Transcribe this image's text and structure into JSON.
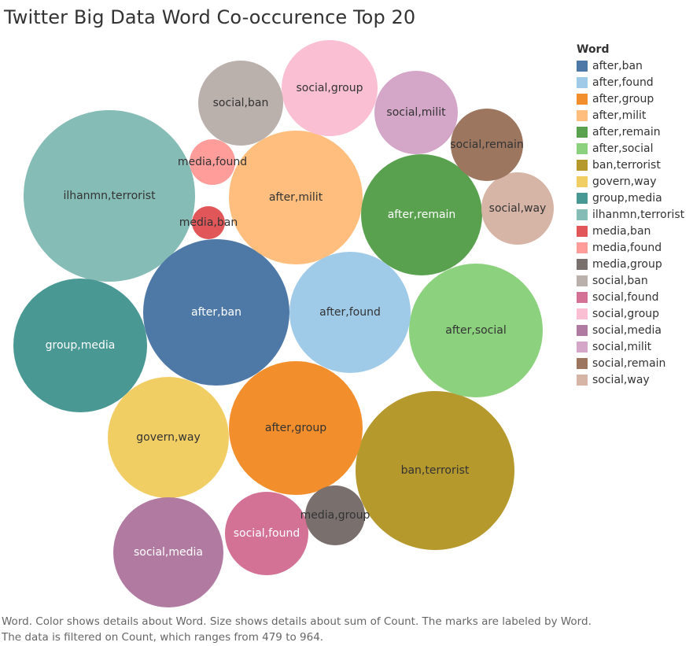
{
  "title": "Twitter Big Data Word Co-occurence Top 20",
  "caption": "Word.  Color shows details about Word.  Size shows details about sum of Count.  The marks are labeled by Word. The data is filtered on Count, which ranges from 479 to 964.",
  "legend": {
    "title": "Word",
    "placement": "right",
    "items": [
      {
        "label": "after,ban",
        "color": "#4e79a7"
      },
      {
        "label": "after,found",
        "color": "#a0cbe8"
      },
      {
        "label": "after,group",
        "color": "#f28e2b"
      },
      {
        "label": "after,milit",
        "color": "#ffbe7d"
      },
      {
        "label": "after,remain",
        "color": "#59a14f"
      },
      {
        "label": "after,social",
        "color": "#8cd17d"
      },
      {
        "label": "ban,terrorist",
        "color": "#b6992d"
      },
      {
        "label": "govern,way",
        "color": "#f1ce63"
      },
      {
        "label": "group,media",
        "color": "#499894"
      },
      {
        "label": "ilhanmn,terrorist",
        "color": "#86bcb6"
      },
      {
        "label": "media,ban",
        "color": "#e15759"
      },
      {
        "label": "media,found",
        "color": "#ff9d9a"
      },
      {
        "label": "media,group",
        "color": "#79706e"
      },
      {
        "label": "social,ban",
        "color": "#bab0ac"
      },
      {
        "label": "social,found",
        "color": "#d37295"
      },
      {
        "label": "social,group",
        "color": "#fabfd2"
      },
      {
        "label": "social,media",
        "color": "#b07aa1"
      },
      {
        "label": "social,milit",
        "color": "#d4a6c8"
      },
      {
        "label": "social,remain",
        "color": "#9d7660"
      },
      {
        "label": "social,way",
        "color": "#d7b5a6"
      }
    ]
  },
  "chart_data": {
    "type": "bubble",
    "title": "Twitter Big Data Word Co-occurence Top 20",
    "size_measure": "sum of Count",
    "count_range": [
      479,
      964
    ],
    "series": [
      {
        "word": "ilhanmn,terrorist",
        "count": 964,
        "color": "#86bcb6",
        "label_color": "#333333"
      },
      {
        "word": "ban,terrorist",
        "count": 900,
        "color": "#b6992d",
        "label_color": "#333333"
      },
      {
        "word": "after,ban",
        "count": 865,
        "color": "#4e79a7",
        "label_color": "#ffffff"
      },
      {
        "word": "after,milit",
        "count": 800,
        "color": "#ffbe7d",
        "label_color": "#333333"
      },
      {
        "word": "after,social",
        "count": 775,
        "color": "#8cd17d",
        "label_color": "#333333"
      },
      {
        "word": "group,media",
        "count": 765,
        "color": "#499894",
        "label_color": "#ffffff"
      },
      {
        "word": "after,group",
        "count": 760,
        "color": "#f28e2b",
        "label_color": "#333333"
      },
      {
        "word": "after,remain",
        "count": 710,
        "color": "#59a14f",
        "label_color": "#ffffff"
      },
      {
        "word": "after,found",
        "count": 705,
        "color": "#a0cbe8",
        "label_color": "#333333"
      },
      {
        "word": "govern,way",
        "count": 695,
        "color": "#f1ce63",
        "label_color": "#333333"
      },
      {
        "word": "social,media",
        "count": 680,
        "color": "#b07aa1",
        "label_color": "#ffffff"
      },
      {
        "word": "social,group",
        "count": 630,
        "color": "#fabfd2",
        "label_color": "#333333"
      },
      {
        "word": "social,ban",
        "count": 595,
        "color": "#bab0ac",
        "label_color": "#333333"
      },
      {
        "word": "social,milit",
        "count": 575,
        "color": "#d4a6c8",
        "label_color": "#333333"
      },
      {
        "word": "social,found",
        "count": 570,
        "color": "#d37295",
        "label_color": "#ffffff"
      },
      {
        "word": "social,way",
        "count": 555,
        "color": "#d7b5a6",
        "label_color": "#333333"
      },
      {
        "word": "social,remain",
        "count": 545,
        "color": "#9d7660",
        "label_color": "#333333"
      },
      {
        "word": "media,group",
        "count": 515,
        "color": "#79706e",
        "label_color": "#333333"
      },
      {
        "word": "media,found",
        "count": 490,
        "color": "#ff9d9a",
        "label_color": "#333333"
      },
      {
        "word": "media,ban",
        "count": 479,
        "color": "#e15759",
        "label_color": "#333333"
      }
    ]
  }
}
